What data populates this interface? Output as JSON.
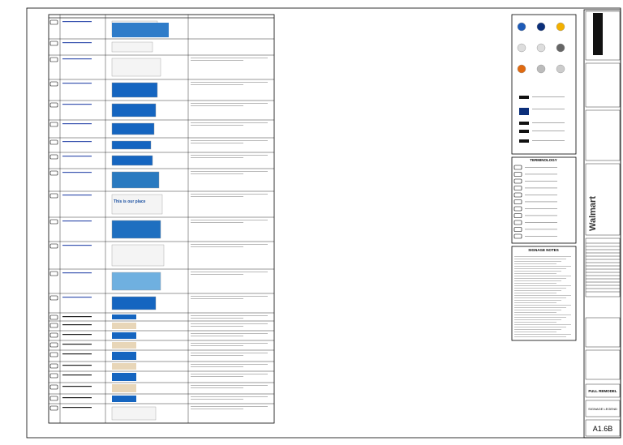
{
  "brand": "Walmart",
  "sections": {
    "terminology": "TERMINOLOGY",
    "notes": "SIGNAGE NOTES"
  },
  "title_block": {
    "project": "FULL REMODEL",
    "sheet_title": "SIGNAGE LEGEND",
    "sheet_number": "A1.6B"
  },
  "thumbnail": {
    "slogan": "This is our place"
  }
}
